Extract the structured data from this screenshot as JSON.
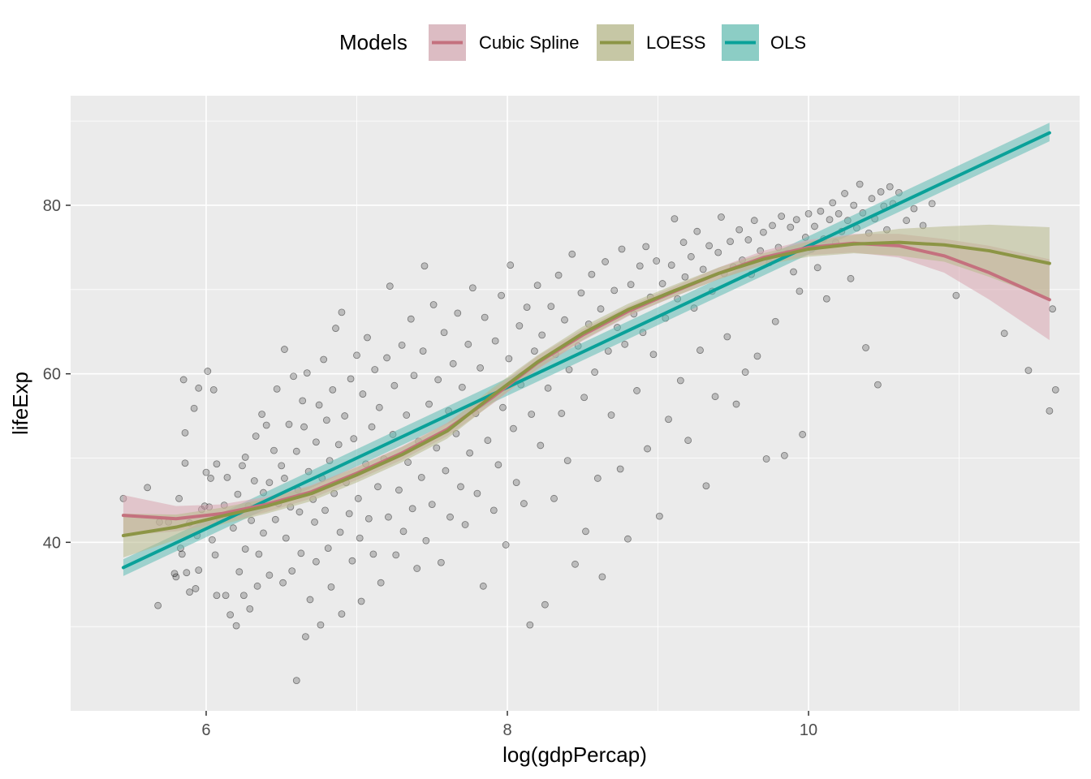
{
  "chart_data": {
    "type": "scatter",
    "xlabel": "log(gdpPercap)",
    "ylabel": "lifeExp",
    "xlim": [
      5.1,
      11.8
    ],
    "ylim": [
      20,
      93
    ],
    "x_ticks": [
      6,
      8,
      10
    ],
    "y_ticks": [
      40,
      60,
      80
    ],
    "x_tick_labels": [
      "6",
      "8",
      "10"
    ],
    "y_tick_labels": [
      "40",
      "60",
      "80"
    ],
    "grid": true,
    "background": "#ebebeb",
    "legend": {
      "title": "Models",
      "position": "top",
      "entries": [
        {
          "label": "Cubic Spline",
          "color": "#c4717e",
          "fill": "#dcbcc3"
        },
        {
          "label": "LOESS",
          "color": "#8c9545",
          "fill": "#c6c7a5"
        },
        {
          "label": "OLS",
          "color": "#0aa199",
          "fill": "#8ccdc5"
        }
      ]
    },
    "series": [
      {
        "name": "Cubic Spline",
        "color": "#c4717e",
        "fill": "#d9a5b0",
        "x": [
          5.45,
          5.8,
          6.1,
          6.4,
          6.7,
          7.0,
          7.3,
          7.6,
          7.9,
          8.2,
          8.5,
          8.8,
          9.1,
          9.4,
          9.7,
          10.0,
          10.3,
          10.6,
          10.9,
          11.2,
          11.6
        ],
        "y": [
          43.2,
          42.8,
          43.4,
          44.5,
          46.0,
          48.2,
          50.6,
          53.4,
          57.2,
          61.3,
          64.6,
          67.4,
          69.7,
          71.9,
          73.8,
          75.0,
          75.5,
          75.2,
          74.0,
          72.0,
          68.8
        ],
        "lower": [
          40.8,
          41.3,
          42.3,
          43.6,
          45.2,
          47.4,
          49.8,
          52.6,
          56.4,
          60.5,
          63.9,
          66.8,
          69.1,
          71.2,
          73.0,
          74.1,
          74.4,
          73.8,
          72.0,
          68.8,
          64.0
        ],
        "upper": [
          45.6,
          44.3,
          44.5,
          45.4,
          46.8,
          49.0,
          51.4,
          54.2,
          58.0,
          62.1,
          65.3,
          68.0,
          70.3,
          72.6,
          74.6,
          75.9,
          76.6,
          76.6,
          76.0,
          75.2,
          73.6
        ]
      },
      {
        "name": "LOESS",
        "color": "#8c9545",
        "fill": "#b8b98d",
        "x": [
          5.45,
          5.8,
          6.1,
          6.4,
          6.7,
          7.0,
          7.3,
          7.6,
          7.9,
          8.2,
          8.5,
          8.8,
          9.1,
          9.4,
          9.7,
          10.0,
          10.3,
          10.6,
          10.9,
          11.2,
          11.6
        ],
        "y": [
          40.8,
          41.8,
          43.1,
          44.3,
          45.8,
          48.0,
          50.4,
          53.2,
          57.4,
          61.4,
          64.8,
          67.6,
          69.8,
          71.9,
          73.6,
          74.8,
          75.4,
          75.6,
          75.3,
          74.6,
          73.1
        ],
        "lower": [
          38.2,
          40.3,
          42.1,
          43.4,
          44.9,
          47.1,
          49.5,
          52.3,
          56.5,
          60.6,
          64.0,
          66.9,
          69.1,
          71.2,
          72.9,
          73.9,
          74.3,
          74.0,
          73.3,
          71.5,
          68.8
        ],
        "upper": [
          43.4,
          43.3,
          44.1,
          45.2,
          46.7,
          48.9,
          51.3,
          54.1,
          58.3,
          62.2,
          65.6,
          68.3,
          70.5,
          72.6,
          74.3,
          75.7,
          76.5,
          77.2,
          77.5,
          77.7,
          77.4
        ]
      },
      {
        "name": "OLS",
        "color": "#0aa199",
        "fill": "#5ebcb4",
        "x": [
          5.45,
          11.6
        ],
        "y": [
          37.0,
          88.6
        ],
        "lower": [
          36.0,
          87.6
        ],
        "upper": [
          38.0,
          89.8
        ]
      }
    ],
    "points": [
      [
        5.45,
        45.2
      ],
      [
        5.61,
        46.5
      ],
      [
        5.68,
        32.5
      ],
      [
        5.69,
        42.4
      ],
      [
        5.75,
        42.4
      ],
      [
        5.79,
        36.3
      ],
      [
        5.8,
        35.9
      ],
      [
        5.82,
        45.2
      ],
      [
        5.83,
        39.3
      ],
      [
        5.84,
        38.6
      ],
      [
        5.85,
        59.3
      ],
      [
        5.86,
        49.4
      ],
      [
        5.86,
        53
      ],
      [
        5.87,
        36.4
      ],
      [
        5.89,
        34.1
      ],
      [
        5.89,
        42.3
      ],
      [
        5.92,
        55.9
      ],
      [
        5.93,
        34.5
      ],
      [
        5.94,
        40.8
      ],
      [
        5.95,
        36.7
      ],
      [
        5.95,
        58.3
      ],
      [
        5.97,
        43.9
      ],
      [
        5.99,
        44.3
      ],
      [
        6.0,
        48.3
      ],
      [
        6.01,
        60.3
      ],
      [
        6.02,
        44.2
      ],
      [
        6.03,
        47.6
      ],
      [
        6.04,
        40.3
      ],
      [
        6.05,
        58.1
      ],
      [
        6.06,
        38.5
      ],
      [
        6.07,
        49.3
      ],
      [
        6.07,
        33.7
      ],
      [
        6.09,
        42.7
      ],
      [
        6.12,
        44.4
      ],
      [
        6.13,
        33.7
      ],
      [
        6.14,
        47.7
      ],
      [
        6.16,
        31.4
      ],
      [
        6.18,
        41.7
      ],
      [
        6.2,
        30.1
      ],
      [
        6.21,
        45.7
      ],
      [
        6.22,
        43.6
      ],
      [
        6.22,
        36.5
      ],
      [
        6.24,
        49.1
      ],
      [
        6.25,
        33.7
      ],
      [
        6.26,
        50.1
      ],
      [
        6.26,
        39.2
      ],
      [
        6.28,
        44.3
      ],
      [
        6.29,
        32.1
      ],
      [
        6.3,
        42.6
      ],
      [
        6.32,
        47.3
      ],
      [
        6.33,
        52.6
      ],
      [
        6.34,
        34.8
      ],
      [
        6.35,
        38.6
      ],
      [
        6.37,
        55.2
      ],
      [
        6.38,
        45.9
      ],
      [
        6.38,
        41.1
      ],
      [
        6.4,
        53.9
      ],
      [
        6.42,
        47.1
      ],
      [
        6.42,
        36.1
      ],
      [
        6.45,
        50.9
      ],
      [
        6.46,
        42.7
      ],
      [
        6.47,
        58.2
      ],
      [
        6.48,
        44.6
      ],
      [
        6.5,
        49.1
      ],
      [
        6.51,
        35.2
      ],
      [
        6.52,
        62.9
      ],
      [
        6.52,
        47.6
      ],
      [
        6.53,
        40.5
      ],
      [
        6.55,
        54.0
      ],
      [
        6.56,
        44.2
      ],
      [
        6.57,
        36.6
      ],
      [
        6.58,
        59.7
      ],
      [
        6.6,
        23.6
      ],
      [
        6.6,
        50.8
      ],
      [
        6.61,
        46.2
      ],
      [
        6.62,
        43.6
      ],
      [
        6.63,
        38.7
      ],
      [
        6.64,
        56.8
      ],
      [
        6.65,
        53.7
      ],
      [
        6.66,
        28.8
      ],
      [
        6.67,
        60.1
      ],
      [
        6.68,
        48.4
      ],
      [
        6.69,
        33.2
      ],
      [
        6.71,
        45.1
      ],
      [
        6.72,
        42.4
      ],
      [
        6.73,
        51.9
      ],
      [
        6.73,
        37.7
      ],
      [
        6.75,
        56.3
      ],
      [
        6.76,
        30.2
      ],
      [
        6.77,
        47.6
      ],
      [
        6.78,
        61.7
      ],
      [
        6.79,
        43.8
      ],
      [
        6.8,
        54.5
      ],
      [
        6.81,
        39.3
      ],
      [
        6.82,
        49.7
      ],
      [
        6.83,
        34.7
      ],
      [
        6.84,
        58.1
      ],
      [
        6.85,
        45.8
      ],
      [
        6.86,
        65.4
      ],
      [
        6.88,
        51.6
      ],
      [
        6.89,
        41.2
      ],
      [
        6.9,
        67.3
      ],
      [
        6.9,
        31.5
      ],
      [
        6.92,
        55.0
      ],
      [
        6.93,
        47.1
      ],
      [
        6.95,
        43.4
      ],
      [
        6.96,
        59.4
      ],
      [
        6.97,
        37.8
      ],
      [
        6.98,
        52.3
      ],
      [
        7.0,
        62.2
      ],
      [
        7.01,
        45.2
      ],
      [
        7.02,
        40.5
      ],
      [
        7.03,
        33.0
      ],
      [
        7.04,
        57.6
      ],
      [
        7.06,
        49.3
      ],
      [
        7.07,
        64.3
      ],
      [
        7.08,
        42.8
      ],
      [
        7.1,
        53.7
      ],
      [
        7.11,
        38.6
      ],
      [
        7.12,
        60.5
      ],
      [
        7.14,
        46.6
      ],
      [
        7.15,
        56.0
      ],
      [
        7.16,
        35.2
      ],
      [
        7.18,
        49.9
      ],
      [
        7.2,
        61.9
      ],
      [
        7.21,
        43.0
      ],
      [
        7.22,
        70.4
      ],
      [
        7.24,
        52.8
      ],
      [
        7.25,
        58.6
      ],
      [
        7.26,
        38.5
      ],
      [
        7.28,
        46.2
      ],
      [
        7.3,
        63.4
      ],
      [
        7.31,
        41.3
      ],
      [
        7.33,
        55.1
      ],
      [
        7.34,
        49.5
      ],
      [
        7.36,
        66.5
      ],
      [
        7.37,
        44.0
      ],
      [
        7.38,
        59.8
      ],
      [
        7.4,
        36.9
      ],
      [
        7.41,
        52.0
      ],
      [
        7.43,
        47.7
      ],
      [
        7.44,
        62.7
      ],
      [
        7.45,
        72.8
      ],
      [
        7.46,
        40.2
      ],
      [
        7.48,
        56.4
      ],
      [
        7.5,
        44.5
      ],
      [
        7.51,
        68.2
      ],
      [
        7.53,
        51.2
      ],
      [
        7.54,
        59.3
      ],
      [
        7.56,
        37.6
      ],
      [
        7.58,
        64.9
      ],
      [
        7.59,
        48.5
      ],
      [
        7.61,
        55.6
      ],
      [
        7.62,
        43.0
      ],
      [
        7.64,
        61.2
      ],
      [
        7.66,
        52.9
      ],
      [
        7.67,
        67.2
      ],
      [
        7.69,
        46.6
      ],
      [
        7.7,
        58.4
      ],
      [
        7.72,
        42.1
      ],
      [
        7.74,
        63.5
      ],
      [
        7.75,
        50.6
      ],
      [
        7.77,
        70.2
      ],
      [
        7.79,
        55.3
      ],
      [
        7.8,
        45.8
      ],
      [
        7.82,
        60.7
      ],
      [
        7.84,
        34.8
      ],
      [
        7.85,
        66.7
      ],
      [
        7.87,
        52.1
      ],
      [
        7.89,
        57.4
      ],
      [
        7.91,
        43.8
      ],
      [
        7.92,
        63.9
      ],
      [
        7.94,
        49.2
      ],
      [
        7.96,
        69.3
      ],
      [
        7.97,
        56.0
      ],
      [
        7.99,
        39.7
      ],
      [
        8.01,
        61.8
      ],
      [
        8.02,
        72.9
      ],
      [
        8.04,
        53.5
      ],
      [
        8.06,
        47.1
      ],
      [
        8.08,
        65.7
      ],
      [
        8.09,
        58.7
      ],
      [
        8.11,
        44.6
      ],
      [
        8.13,
        67.9
      ],
      [
        8.15,
        30.2
      ],
      [
        8.16,
        55.2
      ],
      [
        8.18,
        62.7
      ],
      [
        8.2,
        70.5
      ],
      [
        8.22,
        51.5
      ],
      [
        8.23,
        64.6
      ],
      [
        8.25,
        32.6
      ],
      [
        8.27,
        58.3
      ],
      [
        8.29,
        68.0
      ],
      [
        8.31,
        45.2
      ],
      [
        8.32,
        62.3
      ],
      [
        8.34,
        71.7
      ],
      [
        8.36,
        55.3
      ],
      [
        8.38,
        66.4
      ],
      [
        8.4,
        49.7
      ],
      [
        8.41,
        60.5
      ],
      [
        8.43,
        74.2
      ],
      [
        8.45,
        37.4
      ],
      [
        8.47,
        63.3
      ],
      [
        8.49,
        69.6
      ],
      [
        8.51,
        57.2
      ],
      [
        8.52,
        41.3
      ],
      [
        8.54,
        65.9
      ],
      [
        8.56,
        71.8
      ],
      [
        8.58,
        60.2
      ],
      [
        8.6,
        47.6
      ],
      [
        8.62,
        67.7
      ],
      [
        8.63,
        35.9
      ],
      [
        8.65,
        73.3
      ],
      [
        8.67,
        62.7
      ],
      [
        8.69,
        55.1
      ],
      [
        8.71,
        69.9
      ],
      [
        8.73,
        65.5
      ],
      [
        8.75,
        48.7
      ],
      [
        8.76,
        74.8
      ],
      [
        8.78,
        63.5
      ],
      [
        8.8,
        40.4
      ],
      [
        8.82,
        70.6
      ],
      [
        8.84,
        67.1
      ],
      [
        8.86,
        58.0
      ],
      [
        8.88,
        72.8
      ],
      [
        8.9,
        64.9
      ],
      [
        8.92,
        75.1
      ],
      [
        8.93,
        51.1
      ],
      [
        8.95,
        69.1
      ],
      [
        8.97,
        62.3
      ],
      [
        8.99,
        73.4
      ],
      [
        9.01,
        43.1
      ],
      [
        9.03,
        70.7
      ],
      [
        9.05,
        66.6
      ],
      [
        9.07,
        54.6
      ],
      [
        9.09,
        72.9
      ],
      [
        9.11,
        78.4
      ],
      [
        9.13,
        68.9
      ],
      [
        9.15,
        59.2
      ],
      [
        9.17,
        75.6
      ],
      [
        9.18,
        71.5
      ],
      [
        9.2,
        52.1
      ],
      [
        9.22,
        73.9
      ],
      [
        9.24,
        67.8
      ],
      [
        9.26,
        76.9
      ],
      [
        9.28,
        62.8
      ],
      [
        9.3,
        72.4
      ],
      [
        9.32,
        46.7
      ],
      [
        9.34,
        75.2
      ],
      [
        9.36,
        69.8
      ],
      [
        9.38,
        57.3
      ],
      [
        9.4,
        74.4
      ],
      [
        9.42,
        78.6
      ],
      [
        9.44,
        71.9
      ],
      [
        9.46,
        64.4
      ],
      [
        9.48,
        75.7
      ],
      [
        9.5,
        72.7
      ],
      [
        9.52,
        56.4
      ],
      [
        9.54,
        77.1
      ],
      [
        9.56,
        73.5
      ],
      [
        9.58,
        60.2
      ],
      [
        9.6,
        75.9
      ],
      [
        9.62,
        71.8
      ],
      [
        9.64,
        78.2
      ],
      [
        9.66,
        62.1
      ],
      [
        9.68,
        74.6
      ],
      [
        9.7,
        76.8
      ],
      [
        9.72,
        49.9
      ],
      [
        9.74,
        73.2
      ],
      [
        9.76,
        77.6
      ],
      [
        9.78,
        66.2
      ],
      [
        9.8,
        75.0
      ],
      [
        9.82,
        78.7
      ],
      [
        9.84,
        50.3
      ],
      [
        9.86,
        74.3
      ],
      [
        9.88,
        77.4
      ],
      [
        9.9,
        72.1
      ],
      [
        9.92,
        78.3
      ],
      [
        9.94,
        69.8
      ],
      [
        9.96,
        52.8
      ],
      [
        9.98,
        76.2
      ],
      [
        10.0,
        79.0
      ],
      [
        10.02,
        74.8
      ],
      [
        10.04,
        77.5
      ],
      [
        10.06,
        72.6
      ],
      [
        10.08,
        79.3
      ],
      [
        10.1,
        76.0
      ],
      [
        10.12,
        68.9
      ],
      [
        10.14,
        78.3
      ],
      [
        10.16,
        80.3
      ],
      [
        10.18,
        75.6
      ],
      [
        10.2,
        79.0
      ],
      [
        10.22,
        76.9
      ],
      [
        10.24,
        81.4
      ],
      [
        10.26,
        78.2
      ],
      [
        10.28,
        71.3
      ],
      [
        10.3,
        80.0
      ],
      [
        10.32,
        77.3
      ],
      [
        10.34,
        82.5
      ],
      [
        10.36,
        79.1
      ],
      [
        10.38,
        63.1
      ],
      [
        10.4,
        76.7
      ],
      [
        10.42,
        80.8
      ],
      [
        10.44,
        78.4
      ],
      [
        10.46,
        58.7
      ],
      [
        10.48,
        81.6
      ],
      [
        10.5,
        79.9
      ],
      [
        10.52,
        77.1
      ],
      [
        10.54,
        82.2
      ],
      [
        10.56,
        80.2
      ],
      [
        10.6,
        81.5
      ],
      [
        10.65,
        78.2
      ],
      [
        10.7,
        79.6
      ],
      [
        10.76,
        77.6
      ],
      [
        10.82,
        80.2
      ],
      [
        10.98,
        69.3
      ],
      [
        11.3,
        64.8
      ],
      [
        11.46,
        60.4
      ],
      [
        11.6,
        55.6
      ],
      [
        11.62,
        67.7
      ],
      [
        11.64,
        58.1
      ]
    ]
  }
}
